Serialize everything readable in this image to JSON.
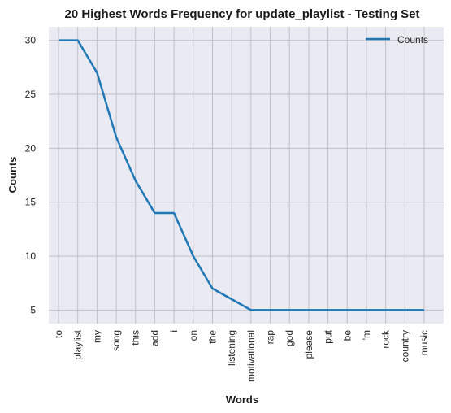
{
  "chart_data": {
    "type": "line",
    "title": "20 Highest Words Frequency for update_playlist - Testing Set",
    "xlabel": "Words",
    "ylabel": "Counts",
    "categories": [
      "to",
      "playlist",
      "my",
      "song",
      "this",
      "add",
      "i",
      "on",
      "the",
      "listening",
      "motivational",
      "rap",
      "god",
      "please",
      "put",
      "be",
      "'m",
      "rock",
      "country",
      "music"
    ],
    "series": [
      {
        "name": "Counts",
        "values": [
          30,
          30,
          27,
          21,
          17,
          14,
          14,
          10,
          7,
          6,
          5,
          5,
          5,
          5,
          5,
          5,
          5,
          5,
          5,
          5
        ]
      }
    ],
    "yticks": [
      5,
      10,
      15,
      20,
      25,
      30
    ],
    "ylim": [
      3.75,
      31.25
    ],
    "grid": true,
    "legend": "top-right",
    "colors": {
      "line": "#1f77b4",
      "plot_bg": "#eaeaf2",
      "grid": "#c0c0c8"
    }
  }
}
